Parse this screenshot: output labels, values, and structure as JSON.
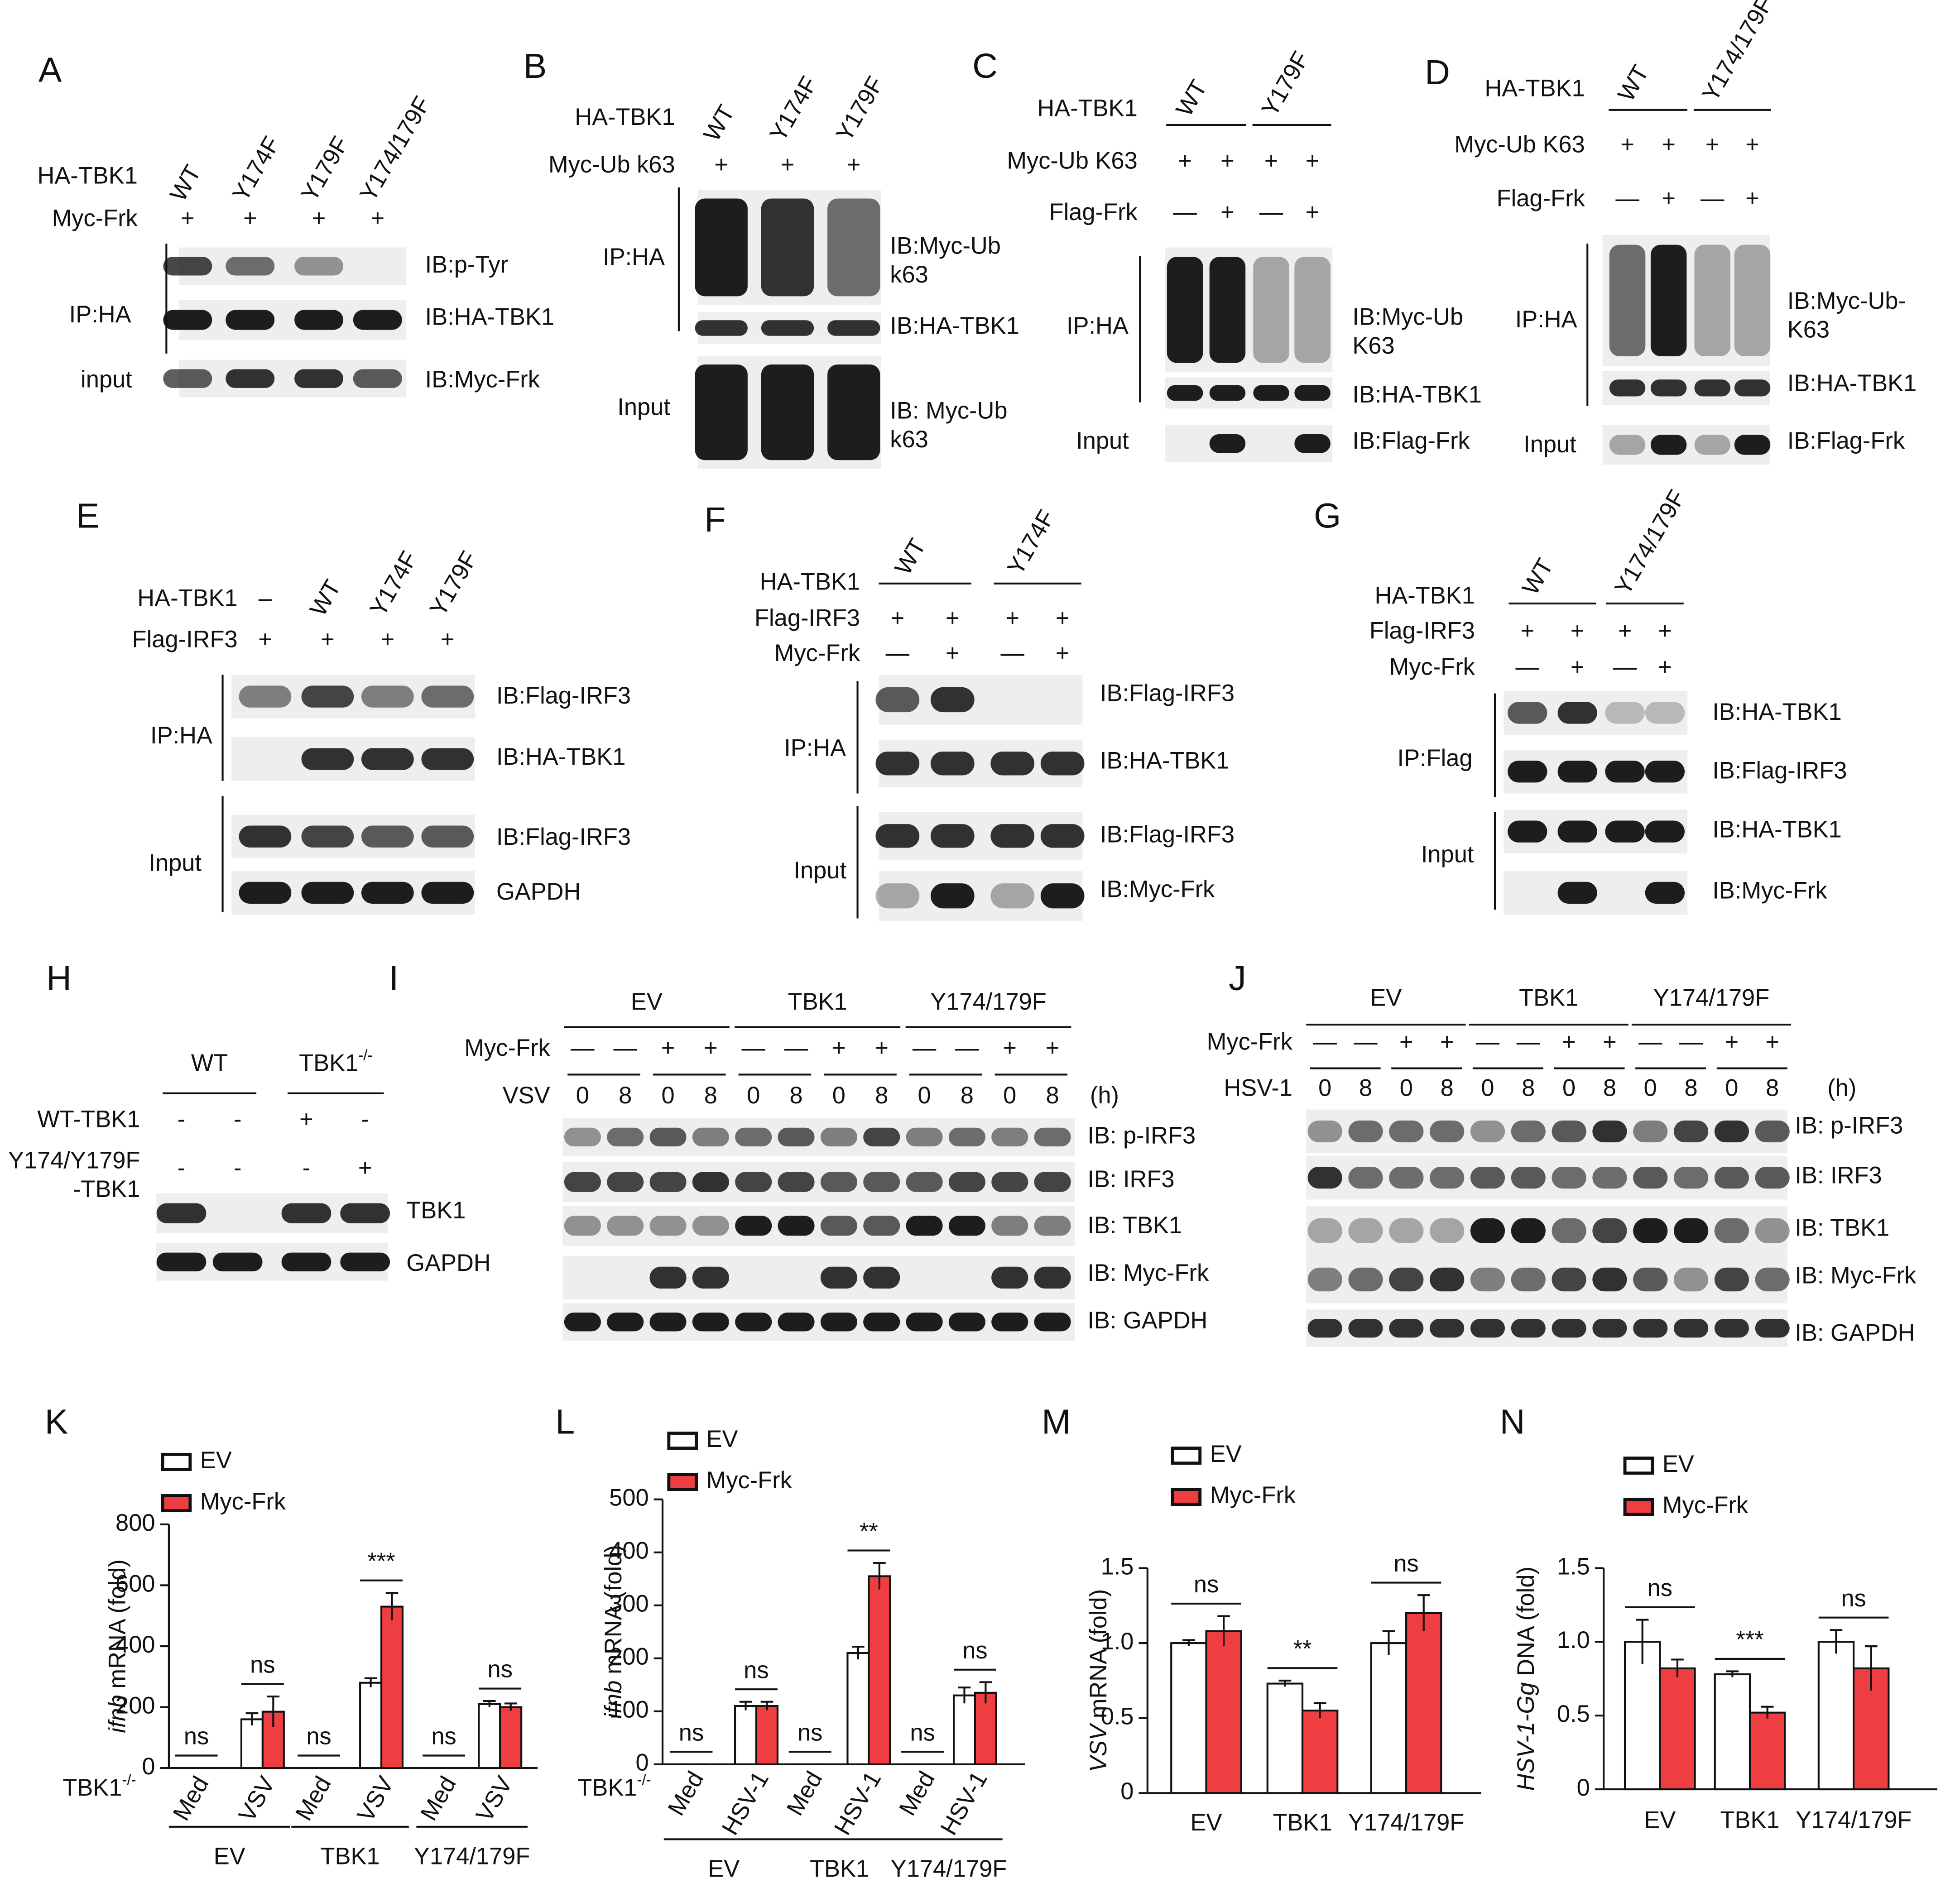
{
  "blots": [
    {
      "letter": "A",
      "column_labels": [
        "WT",
        "Y174F",
        "Y179F",
        "Y174/179F"
      ],
      "rows": [
        {
          "label": "HA-TBK1"
        },
        {
          "label": "Myc-Frk",
          "marks": [
            "+",
            "+",
            "+",
            "+"
          ]
        }
      ],
      "ib": [
        [
          "IB:p-Tyr"
        ],
        [
          "IB:HA-TBK1"
        ],
        [
          "IB:Myc-Frk"
        ]
      ],
      "groups": [
        "IP:HA",
        "input"
      ]
    },
    {
      "letter": "B",
      "column_labels": [
        "WT",
        "Y174F",
        "Y179F"
      ],
      "rows": [
        {
          "label": "HA-TBK1"
        },
        {
          "label": "Myc-Ub k63",
          "marks": [
            "+",
            "+",
            "+"
          ]
        }
      ],
      "ib": [
        [
          "IB:Myc-Ub",
          "k63"
        ],
        [
          "IB:HA-TBK1"
        ],
        [
          "IB: Myc-Ub",
          "k63"
        ]
      ],
      "groups": [
        "IP:HA",
        "Input"
      ]
    },
    {
      "letter": "C",
      "column_groups": [
        "WT",
        "Y179F"
      ],
      "rows": [
        {
          "label": "HA-TBK1"
        },
        {
          "label": "Myc-Ub K63",
          "marks": [
            "+",
            "+",
            "+",
            "+"
          ]
        },
        {
          "label": "Flag-Frk",
          "marks": [
            "—",
            "+",
            "—",
            "+"
          ]
        }
      ],
      "ib": [
        [
          "IB:Myc-Ub",
          "K63"
        ],
        [
          "IB:HA-TBK1"
        ],
        [
          "IB:Flag-Frk"
        ]
      ],
      "groups": [
        "IP:HA",
        "Input"
      ]
    },
    {
      "letter": "D",
      "column_groups": [
        "WT",
        "Y174/179F"
      ],
      "rows": [
        {
          "label": "HA-TBK1"
        },
        {
          "label": "Myc-Ub K63",
          "marks": [
            "+",
            "+",
            "+",
            "+"
          ]
        },
        {
          "label": "Flag-Frk",
          "marks": [
            "—",
            "+",
            "—",
            "+"
          ]
        }
      ],
      "ib": [
        [
          "IB:Myc-Ub-",
          "K63"
        ],
        [
          "IB:HA-TBK1"
        ],
        [
          "IB:Flag-Frk"
        ]
      ],
      "groups": [
        "IP:HA",
        "Input"
      ]
    },
    {
      "letter": "E",
      "column_labels": [
        "–",
        "WT",
        "Y174F",
        "Y179F"
      ],
      "rows": [
        {
          "label": "HA-TBK1"
        },
        {
          "label": "Flag-IRF3",
          "marks": [
            "+",
            "+",
            "+",
            "+"
          ]
        }
      ],
      "ib": [
        [
          "IB:Flag-IRF3"
        ],
        [
          "IB:HA-TBK1"
        ],
        [
          "IB:Flag-IRF3"
        ],
        [
          "GAPDH"
        ]
      ],
      "groups": [
        "IP:HA",
        "Input"
      ]
    },
    {
      "letter": "F",
      "column_groups": [
        "WT",
        "Y174F"
      ],
      "rows": [
        {
          "label": "HA-TBK1"
        },
        {
          "label": "Flag-IRF3",
          "marks": [
            "+",
            "+",
            "+",
            "+"
          ]
        },
        {
          "label": "Myc-Frk",
          "marks": [
            "—",
            "+",
            "—",
            "+"
          ]
        }
      ],
      "ib": [
        [
          "IB:Flag-IRF3"
        ],
        [
          "IB:HA-TBK1"
        ],
        [
          "IB:Flag-IRF3"
        ],
        [
          "IB:Myc-Frk"
        ]
      ],
      "groups": [
        "IP:HA",
        "Input"
      ]
    },
    {
      "letter": "G",
      "column_groups": [
        "WT",
        "Y174/179F"
      ],
      "rows": [
        {
          "label": "HA-TBK1"
        },
        {
          "label": "Flag-IRF3",
          "marks": [
            "+",
            "+",
            "+",
            "+"
          ]
        },
        {
          "label": "Myc-Frk",
          "marks": [
            "—",
            "+",
            "—",
            "+"
          ]
        }
      ],
      "ib": [
        [
          "IB:HA-TBK1"
        ],
        [
          "IB:Flag-IRF3"
        ],
        [
          "IB:HA-TBK1"
        ],
        [
          "IB:Myc-Frk"
        ]
      ],
      "groups": [
        "IP:Flag",
        "Input"
      ]
    },
    {
      "letter": "H",
      "column_groups": [
        "WT",
        {
          "text": "TBK1",
          "sup": "-/-"
        }
      ],
      "rows": [
        {
          "label": "WT-TBK1",
          "marks": [
            "-",
            "-",
            "+",
            "-"
          ]
        },
        {
          "label": [
            "Y174/Y179F",
            "-TBK1"
          ],
          "marks": [
            "-",
            "-",
            "-",
            "+"
          ]
        }
      ],
      "ib": [
        [
          "TBK1"
        ],
        [
          "GAPDH"
        ]
      ]
    },
    {
      "letter": "I",
      "column_groups": [
        "EV",
        "TBK1",
        "Y174/179F"
      ],
      "rows": [
        {
          "label": "Myc-Frk",
          "marks": [
            "—",
            "—",
            "+",
            "+",
            "—",
            "—",
            "+",
            "+",
            "—",
            "—",
            "+",
            "+"
          ]
        },
        {
          "label": "VSV",
          "marks": [
            0,
            8,
            0,
            8,
            0,
            8,
            0,
            8,
            0,
            8,
            0,
            8
          ]
        }
      ],
      "unit": "(h)",
      "ib": [
        [
          "IB: p-IRF3"
        ],
        [
          "IB: IRF3"
        ],
        [
          "IB: TBK1"
        ],
        [
          "IB: Myc-Frk"
        ],
        [
          "IB: GAPDH"
        ]
      ]
    },
    {
      "letter": "J",
      "column_groups": [
        "EV",
        "TBK1",
        "Y174/179F"
      ],
      "rows": [
        {
          "label": "Myc-Frk",
          "marks": [
            "—",
            "—",
            "+",
            "+",
            "—",
            "—",
            "+",
            "+",
            "—",
            "—",
            "+",
            "+"
          ]
        },
        {
          "label": "HSV-1",
          "marks": [
            0,
            8,
            0,
            8,
            0,
            8,
            0,
            8,
            0,
            8,
            0,
            8
          ]
        }
      ],
      "unit": "(h)",
      "ib": [
        [
          "IB: p-IRF3"
        ],
        [
          "IB: IRF3"
        ],
        [
          "IB: TBK1"
        ],
        [
          "IB: Myc-Frk"
        ],
        [
          "IB: GAPDH"
        ]
      ]
    }
  ],
  "chart_data": [
    {
      "type": "bar",
      "letter": "K",
      "ylabel": {
        "italic": "ifnb",
        "text": "mRNA (fold)"
      },
      "categories": [
        "Med",
        "VSV",
        "Med",
        "VSV",
        "Med",
        "VSV"
      ],
      "groups": [
        "EV",
        "TBK1",
        "Y174/179F"
      ],
      "row_label": {
        "text": "TBK1",
        "sup": "-/-"
      },
      "significance": [
        "ns",
        "ns",
        "ns",
        "***",
        "ns",
        "ns"
      ],
      "series": [
        {
          "name": "EV",
          "color": "#ffffff",
          "values": [
            0,
            160,
            0,
            280,
            0,
            210
          ],
          "errors": [
            0,
            20,
            0,
            15,
            0,
            10
          ]
        },
        {
          "name": "Myc-Frk",
          "color": "#ef3e42",
          "values": [
            0,
            185,
            0,
            530,
            0,
            200
          ],
          "errors": [
            0,
            50,
            0,
            45,
            0,
            12
          ]
        }
      ],
      "ylim": [
        0,
        800
      ],
      "yticks": [
        0,
        200,
        400,
        600,
        800
      ]
    },
    {
      "type": "bar",
      "letter": "L",
      "ylabel": {
        "italic": "ifnb",
        "text": "mRNA (fold)"
      },
      "categories": [
        "Med",
        "HSV-1",
        "Med",
        "HSV-1",
        "Med",
        "HSV-1"
      ],
      "groups": [
        "EV",
        "TBK1",
        "Y174/179F"
      ],
      "row_label": {
        "text": "TBK1",
        "sup": "-/-"
      },
      "significance": [
        "ns",
        "ns",
        "ns",
        "**",
        "ns",
        "ns"
      ],
      "series": [
        {
          "name": "EV",
          "color": "#ffffff",
          "values": [
            0,
            110,
            0,
            210,
            0,
            130
          ],
          "errors": [
            0,
            8,
            0,
            12,
            0,
            15
          ]
        },
        {
          "name": "Myc-Frk",
          "color": "#ef3e42",
          "values": [
            0,
            110,
            0,
            355,
            0,
            135
          ],
          "errors": [
            0,
            8,
            0,
            25,
            0,
            20
          ]
        }
      ],
      "ylim": [
        0,
        500
      ],
      "yticks": [
        0,
        100,
        200,
        300,
        400,
        500
      ]
    },
    {
      "type": "bar",
      "letter": "M",
      "ylabel": {
        "italic": "VSV",
        "text": "mRNA (fold)"
      },
      "categories": [
        "EV",
        "TBK1",
        "Y174/179F"
      ],
      "significance": [
        "ns",
        "**",
        "ns"
      ],
      "series": [
        {
          "name": "EV",
          "color": "#ffffff",
          "values": [
            1.0,
            0.73,
            1.0
          ],
          "errors": [
            0.02,
            0.02,
            0.08
          ]
        },
        {
          "name": "Myc-Frk",
          "color": "#ef3e42",
          "values": [
            1.08,
            0.55,
            1.2
          ],
          "errors": [
            0.1,
            0.05,
            0.12
          ]
        }
      ],
      "ylim": [
        0,
        1.5
      ],
      "yticks": [
        0,
        0.5,
        {
          "value": 1,
          "label": "1.0"
        },
        1.5
      ]
    },
    {
      "type": "bar",
      "letter": "N",
      "ylabel": {
        "italic": "HSV-1-Gg",
        "text": "DNA (fold)"
      },
      "categories": [
        "EV",
        "TBK1",
        "Y174/179F"
      ],
      "significance": [
        "ns",
        "***",
        "ns"
      ],
      "series": [
        {
          "name": "EV",
          "color": "#ffffff",
          "values": [
            1.0,
            0.78,
            1.0
          ],
          "errors": [
            0.15,
            0.02,
            0.08
          ]
        },
        {
          "name": "Myc-Frk",
          "color": "#ef3e42",
          "values": [
            0.82,
            0.52,
            0.82
          ],
          "errors": [
            0.06,
            0.04,
            0.15
          ]
        }
      ],
      "ylim": [
        0,
        1.5
      ],
      "yticks": [
        0,
        0.5,
        {
          "value": 1,
          "label": "1.0"
        },
        1.5
      ]
    }
  ]
}
